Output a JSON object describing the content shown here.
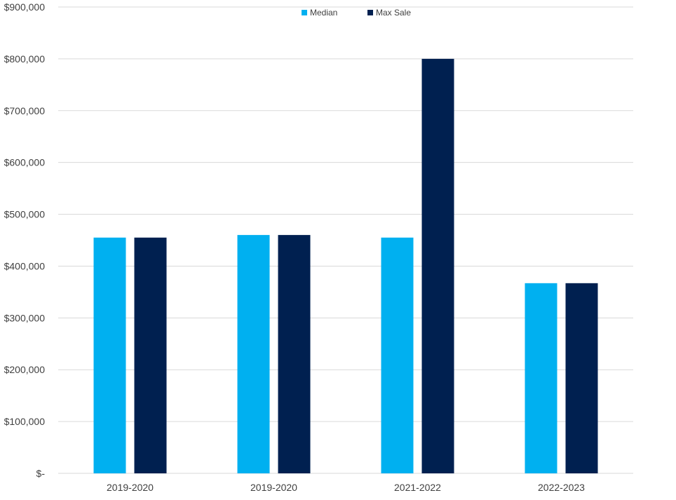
{
  "chart_data": {
    "type": "bar",
    "title": "",
    "xlabel": "",
    "ylabel": "",
    "categories": [
      "2019-2020",
      "2019-2020",
      "2021-2022",
      "2022-2023"
    ],
    "series": [
      {
        "name": "Median",
        "color": "#00b0f0",
        "values": [
          455000,
          460000,
          455000,
          367000
        ]
      },
      {
        "name": "Max Sale",
        "color": "#002050",
        "values": [
          455000,
          460000,
          800000,
          367000
        ]
      }
    ],
    "ylim": [
      0,
      900000
    ],
    "yticks": [
      0,
      100000,
      200000,
      300000,
      400000,
      500000,
      600000,
      700000,
      800000,
      900000
    ],
    "ytick_labels": [
      "$-",
      "$100,000",
      "$200,000",
      "$300,000",
      "$400,000",
      "$500,000",
      "$600,000",
      "$700,000",
      "$800,000",
      "$900,000"
    ],
    "grid": true,
    "legend_position": "top-center"
  }
}
